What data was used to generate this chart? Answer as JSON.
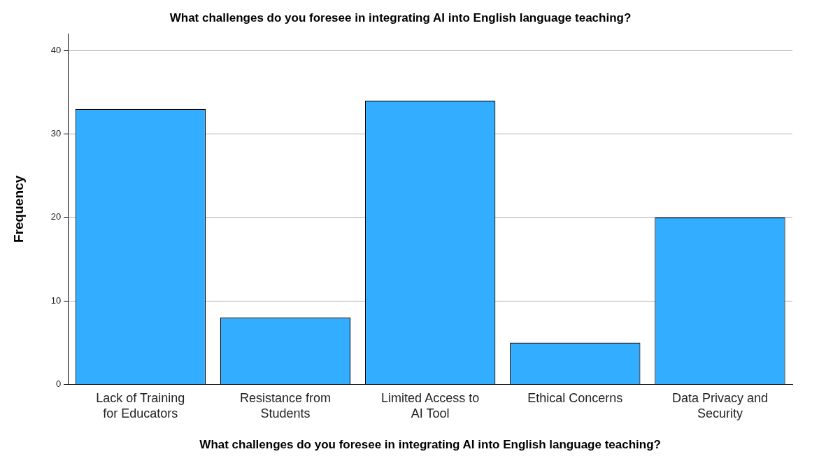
{
  "chart_data": {
    "type": "bar",
    "title": "What challenges do you foresee in integrating AI into English language teaching?",
    "xlabel": "What challenges do you foresee in integrating AI into English language teaching?",
    "ylabel": "Frequency",
    "categories": [
      "Lack of Training for Educators",
      "Resistance from Students",
      "Limited Access to AI Tool",
      "Ethical Concerns",
      "Data Privacy and Security"
    ],
    "values": [
      33,
      8,
      34,
      5,
      20
    ],
    "color": "#33adff",
    "ylim": [
      0,
      42
    ],
    "yticks": [
      0,
      10,
      20,
      30,
      40
    ],
    "grid": "y",
    "legend": false
  }
}
